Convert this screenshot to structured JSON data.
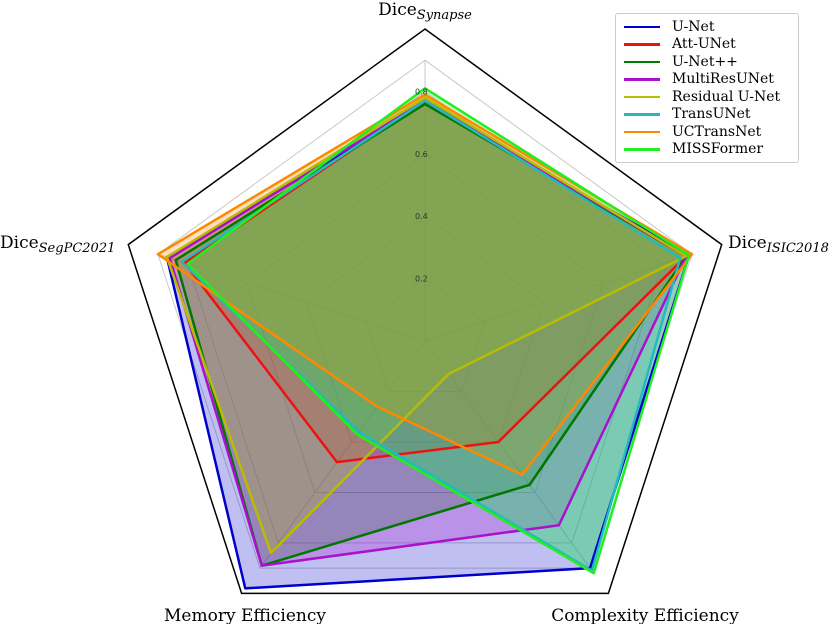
{
  "chart_data": {
    "type": "radar",
    "axes": [
      {
        "name": "Dice",
        "sub": "Synapse"
      },
      {
        "name": "Dice",
        "sub": "ISIC2018"
      },
      {
        "name": "Complexity Efficiency",
        "sub": ""
      },
      {
        "name": "Memory Efficiency",
        "sub": ""
      },
      {
        "name": "Dice",
        "sub": "SegPC2021"
      }
    ],
    "rlim": [
      0,
      1
    ],
    "ticks": [
      0.2,
      0.4,
      0.6,
      0.8
    ],
    "tick_labels": [
      "0.2",
      "0.4",
      "0.6",
      "0.8"
    ],
    "grid": true,
    "legend_position": "top-right",
    "series": [
      {
        "name": "U-Net",
        "color": "#0000cc",
        "values": [
          0.76,
          0.89,
          0.9,
          0.98,
          0.87
        ]
      },
      {
        "name": "Att-UNet",
        "color": "#ee1111",
        "values": [
          0.77,
          0.88,
          0.4,
          0.48,
          0.81
        ]
      },
      {
        "name": "U-Net++",
        "color": "#007700",
        "values": [
          0.76,
          0.88,
          0.57,
          0.89,
          0.84
        ]
      },
      {
        "name": "MultiResUNet",
        "color": "#aa11cc",
        "values": [
          0.77,
          0.88,
          0.73,
          0.89,
          0.86
        ]
      },
      {
        "name": "Residual U-Net",
        "color": "#bbbb00",
        "values": [
          0.78,
          0.88,
          0.13,
          0.84,
          0.87
        ]
      },
      {
        "name": "TransUNet",
        "color": "#22bbbb",
        "values": [
          0.77,
          0.86,
          0.91,
          0.36,
          0.82
        ]
      },
      {
        "name": "UCTransNet",
        "color": "#ff8800",
        "values": [
          0.79,
          0.9,
          0.53,
          0.26,
          0.9
        ]
      },
      {
        "name": "MISSFormer",
        "color": "#22ee22",
        "values": [
          0.81,
          0.89,
          0.92,
          0.37,
          0.8
        ]
      }
    ]
  }
}
